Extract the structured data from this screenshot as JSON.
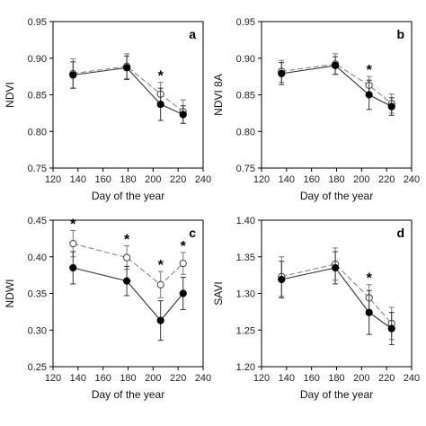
{
  "chart_data": [
    {
      "type": "line",
      "panel": "a",
      "xlabel": "Day of the year",
      "ylabel": "NDVI",
      "xlim": [
        120,
        240
      ],
      "ylim": [
        0.75,
        0.95
      ],
      "xticks": [
        120,
        140,
        160,
        180,
        200,
        220,
        240
      ],
      "yticks": [
        0.75,
        0.8,
        0.85,
        0.9,
        0.95
      ],
      "ytick_labels": [
        "0.75",
        "0.80",
        "0.85",
        "0.90",
        "0.95"
      ],
      "x": [
        136,
        179,
        206,
        224
      ],
      "series": [
        {
          "style": "solid-filled",
          "values": [
            0.877,
            0.887,
            0.837,
            0.823
          ],
          "errors": [
            0.018,
            0.016,
            0.022,
            0.012
          ]
        },
        {
          "style": "dashed-open",
          "values": [
            0.879,
            0.889,
            0.851,
            0.827
          ],
          "errors": [
            0.02,
            0.017,
            0.016,
            0.016
          ]
        }
      ],
      "significant_x": [
        206
      ],
      "significance_mark": "*"
    },
    {
      "type": "line",
      "panel": "b",
      "xlabel": "Day of the year",
      "ylabel": "NDVI 8A",
      "xlim": [
        120,
        240
      ],
      "ylim": [
        0.75,
        0.95
      ],
      "xticks": [
        120,
        140,
        160,
        180,
        200,
        220,
        240
      ],
      "yticks": [
        0.75,
        0.8,
        0.85,
        0.9,
        0.95
      ],
      "ytick_labels": [
        "0.75",
        "0.80",
        "0.85",
        "0.90",
        "0.95"
      ],
      "x": [
        136,
        179,
        206,
        224
      ],
      "series": [
        {
          "style": "solid-filled",
          "values": [
            0.879,
            0.89,
            0.85,
            0.834
          ],
          "errors": [
            0.015,
            0.012,
            0.02,
            0.012
          ]
        },
        {
          "style": "dashed-open",
          "values": [
            0.882,
            0.892,
            0.863,
            0.838
          ],
          "errors": [
            0.015,
            0.014,
            0.012,
            0.013
          ]
        }
      ],
      "significant_x": [
        206
      ],
      "significance_mark": "*"
    },
    {
      "type": "line",
      "panel": "c",
      "xlabel": "Day of the year",
      "ylabel": "NDWI",
      "xlim": [
        120,
        240
      ],
      "ylim": [
        0.25,
        0.45
      ],
      "xticks": [
        120,
        140,
        160,
        180,
        200,
        220,
        240
      ],
      "yticks": [
        0.25,
        0.3,
        0.35,
        0.4,
        0.45
      ],
      "ytick_labels": [
        "0.25",
        "0.30",
        "0.35",
        "0.40",
        "0.45"
      ],
      "x": [
        136,
        179,
        206,
        224
      ],
      "series": [
        {
          "style": "solid-filled",
          "values": [
            0.385,
            0.367,
            0.313,
            0.35
          ],
          "errors": [
            0.022,
            0.02,
            0.027,
            0.022
          ]
        },
        {
          "style": "dashed-open",
          "values": [
            0.418,
            0.399,
            0.362,
            0.391
          ],
          "errors": [
            0.018,
            0.016,
            0.018,
            0.015
          ]
        }
      ],
      "significant_x": [
        136,
        179,
        206,
        224
      ],
      "significance_mark": "*"
    },
    {
      "type": "line",
      "panel": "d",
      "xlabel": "Day of the year",
      "ylabel": "SAVI",
      "xlim": [
        120,
        240
      ],
      "ylim": [
        1.2,
        1.4
      ],
      "xticks": [
        120,
        140,
        160,
        180,
        200,
        220,
        240
      ],
      "yticks": [
        1.2,
        1.25,
        1.3,
        1.35,
        1.4
      ],
      "ytick_labels": [
        "1.20",
        "1.25",
        "1.30",
        "1.35",
        "1.40"
      ],
      "x": [
        136,
        179,
        206,
        224
      ],
      "series": [
        {
          "style": "solid-filled",
          "values": [
            1.319,
            1.335,
            1.274,
            1.252
          ],
          "errors": [
            0.025,
            0.022,
            0.03,
            0.022
          ]
        },
        {
          "style": "dashed-open",
          "values": [
            1.323,
            1.34,
            1.294,
            1.259
          ],
          "errors": [
            0.027,
            0.022,
            0.018,
            0.022
          ]
        }
      ],
      "significant_x": [
        206
      ],
      "significance_mark": "*"
    }
  ]
}
